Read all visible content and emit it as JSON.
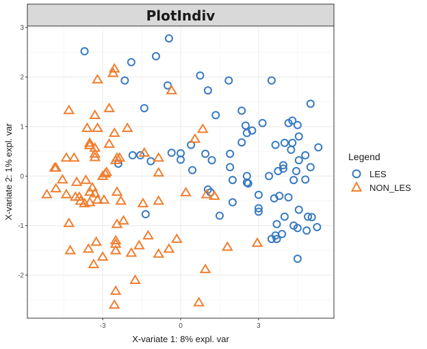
{
  "chart_data": {
    "type": "scatter",
    "title": "PlotIndiv",
    "xlabel": "X-variate 1: 8% expl. var",
    "ylabel": "X-variate 2: 1% expl. var",
    "xlim": [
      -5.9,
      5.9
    ],
    "ylim": [
      -2.87,
      3.03
    ],
    "x_ticks": [
      -3,
      0,
      3
    ],
    "x_tick_labels": [
      "-3",
      "0",
      "3"
    ],
    "y_ticks": [
      -2,
      -1,
      0,
      1,
      2,
      3
    ],
    "y_tick_labels": [
      "-2",
      "-1",
      "0",
      "1",
      "2",
      "3"
    ],
    "grid": true,
    "legend_title": "Legend",
    "legend_position": "right",
    "series": [
      {
        "name": "LES",
        "marker": "circle",
        "color": "#3679C0",
        "points": [
          [
            -3.7,
            2.52
          ],
          [
            -1.9,
            2.3
          ],
          [
            -0.95,
            2.42
          ],
          [
            -0.45,
            2.78
          ],
          [
            -2.15,
            1.93
          ],
          [
            -0.5,
            1.83
          ],
          [
            0.75,
            2.03
          ],
          [
            1.05,
            1.73
          ],
          [
            1.85,
            1.93
          ],
          [
            3.5,
            1.93
          ],
          [
            -1.4,
            1.37
          ],
          [
            1.35,
            1.23
          ],
          [
            2.35,
            1.32
          ],
          [
            5.0,
            1.46
          ],
          [
            2.5,
            1.02
          ],
          [
            2.75,
            0.92
          ],
          [
            3.15,
            1.07
          ],
          [
            2.55,
            0.87
          ],
          [
            4.15,
            1.07
          ],
          [
            4.3,
            1.12
          ],
          [
            4.5,
            1.03
          ],
          [
            4.55,
            0.8
          ],
          [
            2.35,
            0.68
          ],
          [
            3.65,
            0.63
          ],
          [
            4.0,
            0.67
          ],
          [
            4.3,
            0.67
          ],
          [
            5.3,
            0.58
          ],
          [
            4.25,
            0.53
          ],
          [
            -2.4,
            0.25
          ],
          [
            -1.85,
            0.42
          ],
          [
            -1.55,
            0.42
          ],
          [
            -1.15,
            0.3
          ],
          [
            -0.35,
            0.47
          ],
          [
            0.0,
            0.46
          ],
          [
            0.0,
            0.33
          ],
          [
            0.4,
            0.63
          ],
          [
            0.95,
            0.45
          ],
          [
            1.2,
            0.32
          ],
          [
            1.9,
            0.45
          ],
          [
            4.8,
            0.42
          ],
          [
            0.45,
            0.12
          ],
          [
            1.9,
            0.18
          ],
          [
            4.55,
            0.32
          ],
          [
            3.95,
            0.15
          ],
          [
            4.45,
            0.1
          ],
          [
            5.0,
            0.18
          ],
          [
            3.4,
            0.0
          ],
          [
            3.75,
            0.1
          ],
          [
            3.95,
            0.22
          ],
          [
            2.55,
            0.0
          ],
          [
            2.0,
            -0.08
          ],
          [
            2.55,
            -0.13
          ],
          [
            2.6,
            -0.15
          ],
          [
            4.35,
            -0.08
          ],
          [
            4.8,
            -0.07
          ],
          [
            1.05,
            -0.27
          ],
          [
            1.15,
            -0.33
          ],
          [
            3.0,
            -0.38
          ],
          [
            2.0,
            -0.53
          ],
          [
            1.5,
            -0.8
          ],
          [
            3.0,
            -0.65
          ],
          [
            3.0,
            -0.72
          ],
          [
            3.6,
            -0.45
          ],
          [
            3.8,
            -0.4
          ],
          [
            4.15,
            -0.43
          ],
          [
            4.55,
            -0.68
          ],
          [
            4.9,
            -0.82
          ],
          [
            5.05,
            -0.83
          ],
          [
            4.0,
            -0.82
          ],
          [
            3.7,
            -0.97
          ],
          [
            4.35,
            -1.0
          ],
          [
            4.5,
            -1.05
          ],
          [
            4.85,
            -1.1
          ],
          [
            5.25,
            -1.03
          ],
          [
            3.65,
            -1.2
          ],
          [
            3.7,
            -1.27
          ],
          [
            3.9,
            -1.17
          ],
          [
            3.5,
            -1.27
          ],
          [
            4.5,
            -1.67
          ],
          [
            -1.35,
            -0.77
          ]
        ]
      },
      {
        "name": "NON_LES",
        "marker": "triangle",
        "color": "#F07D2E",
        "points": [
          [
            -2.55,
            2.17
          ],
          [
            -2.6,
            2.08
          ],
          [
            -3.2,
            1.95
          ],
          [
            -0.35,
            1.73
          ],
          [
            -4.3,
            1.33
          ],
          [
            -2.75,
            1.37
          ],
          [
            -3.3,
            1.23
          ],
          [
            -4.8,
            0.17
          ],
          [
            -4.85,
            0.17
          ],
          [
            -3.6,
            0.97
          ],
          [
            -3.2,
            0.97
          ],
          [
            -2.55,
            0.87
          ],
          [
            -2.05,
            0.97
          ],
          [
            0.85,
            0.95
          ],
          [
            -3.5,
            0.67
          ],
          [
            -3.5,
            0.62
          ],
          [
            -2.75,
            0.65
          ],
          [
            -3.3,
            0.45
          ],
          [
            -3.3,
            0.57
          ],
          [
            -3.3,
            0.38
          ],
          [
            -2.45,
            0.37
          ],
          [
            -2.35,
            0.37
          ],
          [
            -1.4,
            0.47
          ],
          [
            -0.85,
            0.37
          ],
          [
            -4.4,
            0.37
          ],
          [
            -4.1,
            0.37
          ],
          [
            -2.5,
            0.32
          ],
          [
            -0.85,
            0.07
          ],
          [
            -2.85,
            0.08
          ],
          [
            -2.9,
            0.05
          ],
          [
            -3.0,
            0.0
          ],
          [
            -4.55,
            -0.07
          ],
          [
            -4.0,
            -0.12
          ],
          [
            -3.65,
            -0.08
          ],
          [
            -3.4,
            -0.23
          ],
          [
            -3.5,
            -0.32
          ],
          [
            -3.3,
            -0.35
          ],
          [
            -2.45,
            -0.32
          ],
          [
            -4.8,
            -0.25
          ],
          [
            -5.15,
            -0.37
          ],
          [
            -4.4,
            -0.37
          ],
          [
            -4.05,
            -0.42
          ],
          [
            -3.9,
            -0.42
          ],
          [
            -3.85,
            -0.5
          ],
          [
            -3.7,
            -0.55
          ],
          [
            -3.5,
            -0.53
          ],
          [
            -3.2,
            -0.48
          ],
          [
            -2.95,
            -0.48
          ],
          [
            -2.3,
            -0.5
          ],
          [
            -1.45,
            -0.55
          ],
          [
            -0.85,
            -0.5
          ],
          [
            0.2,
            -0.33
          ],
          [
            1.0,
            -0.37
          ],
          [
            1.3,
            -0.4
          ],
          [
            0.55,
            0.75
          ],
          [
            -4.3,
            -0.95
          ],
          [
            -2.2,
            -0.9
          ],
          [
            -2.45,
            -0.97
          ],
          [
            -3.25,
            -1.33
          ],
          [
            -2.5,
            -1.3
          ],
          [
            -2.5,
            -1.37
          ],
          [
            -1.25,
            -1.2
          ],
          [
            -1.6,
            -1.4
          ],
          [
            -0.15,
            -1.27
          ],
          [
            -0.45,
            -1.47
          ],
          [
            -0.85,
            -1.57
          ],
          [
            -1.9,
            -1.55
          ],
          [
            -2.5,
            -1.5
          ],
          [
            -3.0,
            -1.63
          ],
          [
            -3.55,
            -1.47
          ],
          [
            -4.25,
            -1.5
          ],
          [
            -3.35,
            -1.78
          ],
          [
            1.8,
            -1.43
          ],
          [
            2.95,
            -1.35
          ],
          [
            -1.75,
            -2.1
          ],
          [
            -2.5,
            -2.32
          ],
          [
            0.95,
            -1.88
          ],
          [
            -2.55,
            -2.6
          ],
          [
            0.7,
            -2.55
          ]
        ]
      }
    ]
  }
}
